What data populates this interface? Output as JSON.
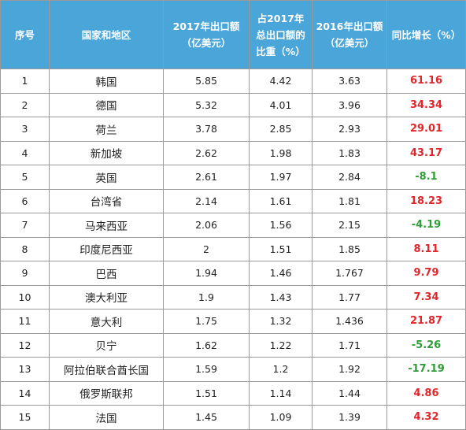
{
  "header": {
    "rank": "序号",
    "country": "国家和地区",
    "exports_2017": [
      "2017年出口额",
      "（亿美元）"
    ],
    "share_2017": [
      "占2017年",
      "总出口额的",
      "比重（%）"
    ],
    "exports_2016": [
      "2016年出口额",
      "（亿美元）"
    ],
    "growth": "同比增长（%）"
  },
  "colors": {
    "header_bg": "#4aa6d9",
    "positive_growth": "#e0262b",
    "negative_growth": "#2f9e37"
  },
  "rows": [
    {
      "rank": "1",
      "country": "韩国",
      "exports_2017": "5.85",
      "share_2017": "4.42",
      "exports_2016": "3.63",
      "growth": "61.16"
    },
    {
      "rank": "2",
      "country": "德国",
      "exports_2017": "5.32",
      "share_2017": "4.01",
      "exports_2016": "3.96",
      "growth": "34.34"
    },
    {
      "rank": "3",
      "country": "荷兰",
      "exports_2017": "3.78",
      "share_2017": "2.85",
      "exports_2016": "2.93",
      "growth": "29.01"
    },
    {
      "rank": "4",
      "country": "新加坡",
      "exports_2017": "2.62",
      "share_2017": "1.98",
      "exports_2016": "1.83",
      "growth": "43.17"
    },
    {
      "rank": "5",
      "country": "英国",
      "exports_2017": "2.61",
      "share_2017": "1.97",
      "exports_2016": "2.84",
      "growth": "-8.1"
    },
    {
      "rank": "6",
      "country": "台湾省",
      "exports_2017": "2.14",
      "share_2017": "1.61",
      "exports_2016": "1.81",
      "growth": "18.23"
    },
    {
      "rank": "7",
      "country": "马来西亚",
      "exports_2017": "2.06",
      "share_2017": "1.56",
      "exports_2016": "2.15",
      "growth": "-4.19"
    },
    {
      "rank": "8",
      "country": "印度尼西亚",
      "exports_2017": "2",
      "share_2017": "1.51",
      "exports_2016": "1.85",
      "growth": "8.11"
    },
    {
      "rank": "9",
      "country": "巴西",
      "exports_2017": "1.94",
      "share_2017": "1.46",
      "exports_2016": "1.767",
      "growth": "9.79"
    },
    {
      "rank": "10",
      "country": "澳大利亚",
      "exports_2017": "1.9",
      "share_2017": "1.43",
      "exports_2016": "1.77",
      "growth": "7.34"
    },
    {
      "rank": "11",
      "country": "意大利",
      "exports_2017": "1.75",
      "share_2017": "1.32",
      "exports_2016": "1.436",
      "growth": "21.87"
    },
    {
      "rank": "12",
      "country": "贝宁",
      "exports_2017": "1.62",
      "share_2017": "1.22",
      "exports_2016": "1.71",
      "growth": "-5.26"
    },
    {
      "rank": "13",
      "country": "阿拉伯联合酋长国",
      "exports_2017": "1.59",
      "share_2017": "1.2",
      "exports_2016": "1.92",
      "growth": "-17.19"
    },
    {
      "rank": "14",
      "country": "俄罗斯联邦",
      "exports_2017": "1.51",
      "share_2017": "1.14",
      "exports_2016": "1.44",
      "growth": "4.86"
    },
    {
      "rank": "15",
      "country": "法国",
      "exports_2017": "1.45",
      "share_2017": "1.09",
      "exports_2016": "1.39",
      "growth": "4.32"
    }
  ]
}
